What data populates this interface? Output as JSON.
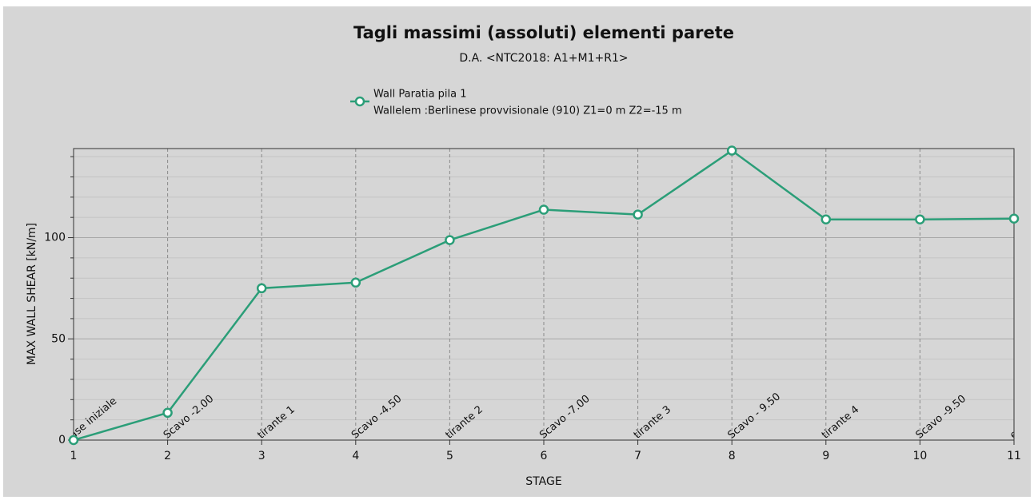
{
  "chart_data": {
    "type": "line",
    "title": "Tagli massimi (assoluti) elementi parete",
    "subtitle": "D.A. <NTC2018: A1+M1+R1>",
    "xlabel": "STAGE",
    "ylabel": "MAX WALL SHEAR [kN/m]",
    "x": [
      1,
      2,
      3,
      4,
      5,
      6,
      7,
      8,
      9,
      10,
      11
    ],
    "series": [
      {
        "name": "Wall Paratia pila 1",
        "detail": "Wallelem :Berlinese provvisionale (910) Z1=0 m Z2=-15 m",
        "color": "#2b9e78",
        "values": [
          0,
          13.5,
          75,
          77.8,
          98.8,
          113.8,
          111.4,
          143,
          109,
          109,
          109.4
        ]
      }
    ],
    "xlim": [
      1,
      11
    ],
    "xticks": [
      1,
      2,
      3,
      4,
      5,
      6,
      7,
      8,
      9,
      10,
      11
    ],
    "ylim": [
      0,
      144
    ],
    "yticks": [
      0,
      50,
      100
    ],
    "y_minor_ticks": [
      10,
      20,
      30,
      40,
      60,
      70,
      80,
      90,
      110,
      120,
      130,
      140
    ],
    "stage_lines": [
      2,
      3,
      4,
      5,
      6,
      7,
      8,
      9,
      10
    ],
    "annotations": [
      {
        "x": 1,
        "text": "ase iniziale"
      },
      {
        "x": 2,
        "text": "Scavo -2.00"
      },
      {
        "x": 3,
        "text": "tirante 1"
      },
      {
        "x": 4,
        "text": "Scavo -4.50"
      },
      {
        "x": 5,
        "text": "tirante 2"
      },
      {
        "x": 6,
        "text": "Scavo -7.00"
      },
      {
        "x": 7,
        "text": "tirante 3"
      },
      {
        "x": 8,
        "text": "Scavo - 9.50"
      },
      {
        "x": 9,
        "text": "tirante 4"
      },
      {
        "x": 10,
        "text": "Scavo -9.50"
      },
      {
        "x": 11,
        "text": "e"
      }
    ],
    "grid": true
  }
}
